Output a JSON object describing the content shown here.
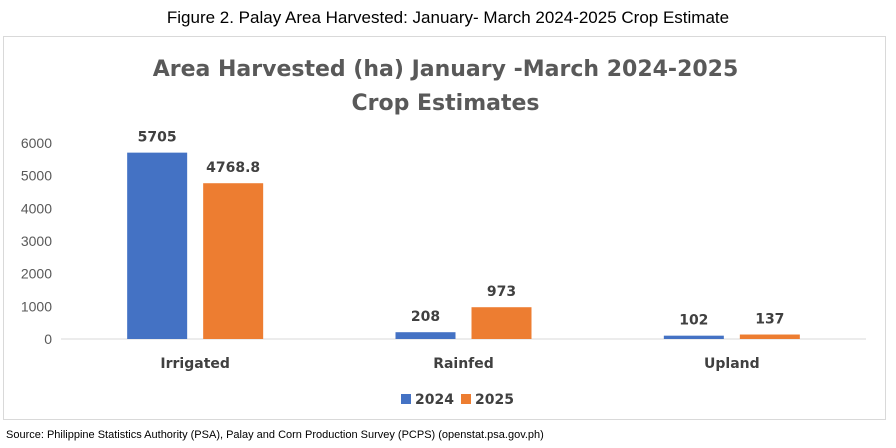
{
  "figure_caption": "Figure 2. Palay Area Harvested: January- March 2024-2025 Crop Estimate",
  "source_note": "Source:  Philippine Statistics Authority (PSA), Palay and Corn Production Survey (PCPS) (openstat.psa.gov.ph)",
  "chart_data": {
    "type": "bar",
    "title_lines": [
      "Area Harvested (ha) January -March 2024-2025",
      "Crop Estimates"
    ],
    "categories": [
      "Irrigated",
      "Rainfed",
      "Upland"
    ],
    "series": [
      {
        "name": "2024",
        "values": [
          5705,
          208,
          102
        ],
        "labels": [
          "5705",
          "208",
          "102"
        ],
        "color": "#4472C4"
      },
      {
        "name": "2025",
        "values": [
          4768.8,
          973,
          137
        ],
        "labels": [
          "4768.8",
          "973",
          "137"
        ],
        "color": "#ED7D31"
      }
    ],
    "ylim": [
      0,
      6000
    ],
    "yticks": [
      0,
      1000,
      2000,
      3000,
      4000,
      5000,
      6000
    ],
    "grid": false,
    "legend_position": "bottom"
  }
}
